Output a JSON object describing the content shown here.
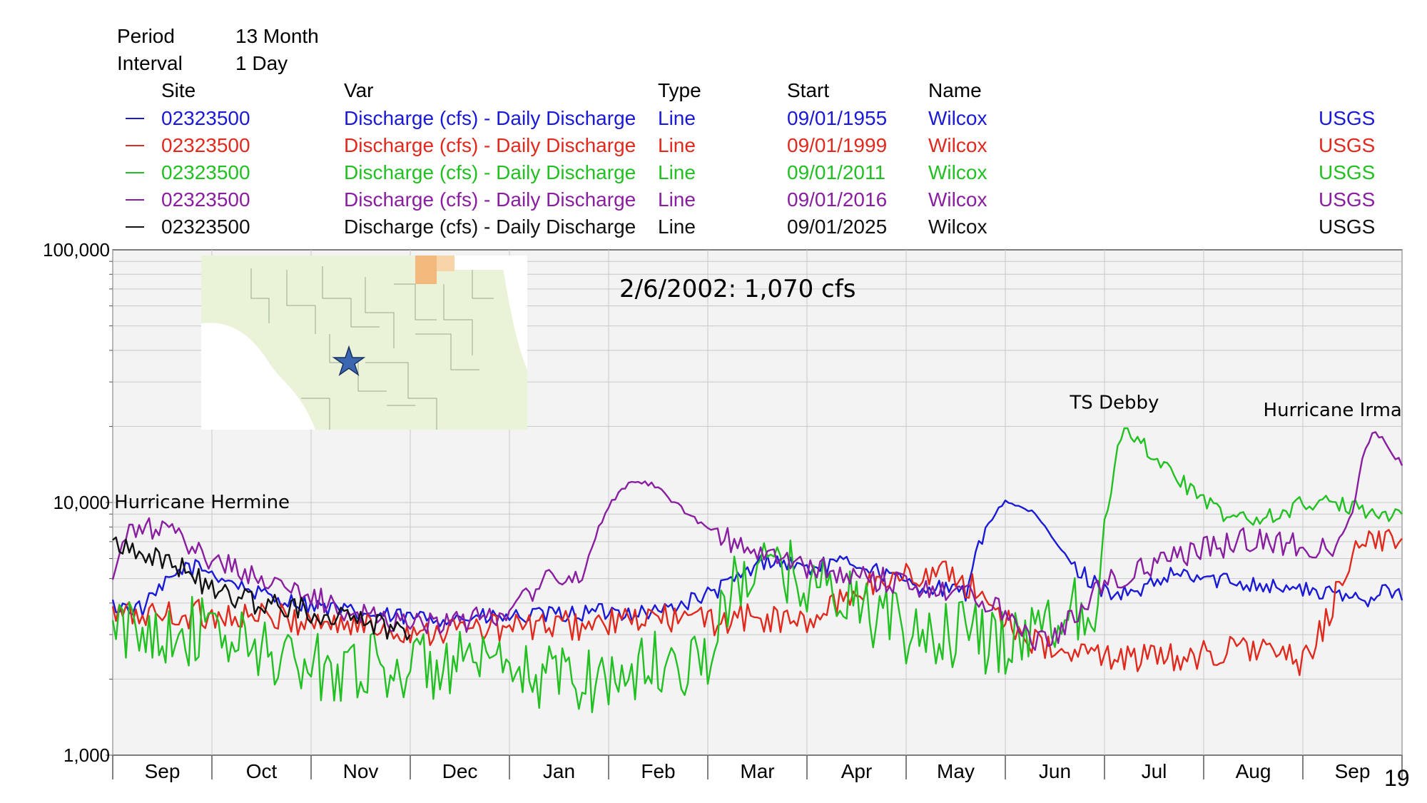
{
  "header": {
    "period_label": "Period",
    "period_value": "13 Month",
    "interval_label": "Interval",
    "interval_value": "1 Day"
  },
  "legend_headers": {
    "site": "Site",
    "var": "Var",
    "type": "Type",
    "start": "Start",
    "name": "Name"
  },
  "legend_rows": [
    {
      "site": "02323500",
      "var": "Discharge (cfs) - Daily Discharge",
      "type": "Line",
      "start": "09/01/1955",
      "name": "Wilcox",
      "agency": "USGS",
      "color": "#1a1ad6"
    },
    {
      "site": "02323500",
      "var": "Discharge (cfs) - Daily Discharge",
      "type": "Line",
      "start": "09/01/1999",
      "name": "Wilcox",
      "agency": "USGS",
      "color": "#e02a1e"
    },
    {
      "site": "02323500",
      "var": "Discharge (cfs) - Daily Discharge",
      "type": "Line",
      "start": "09/01/2011",
      "name": "Wilcox",
      "agency": "USGS",
      "color": "#22c022"
    },
    {
      "site": "02323500",
      "var": "Discharge (cfs) - Daily Discharge",
      "type": "Line",
      "start": "09/01/2016",
      "name": "Wilcox",
      "agency": "USGS",
      "color": "#8a1ea0"
    },
    {
      "site": "02323500",
      "var": "Discharge (cfs) - Daily Discharge",
      "type": "Line",
      "start": "09/01/2025",
      "name": "Wilcox",
      "agency": "USGS",
      "color": "#111111"
    }
  ],
  "slide_number": "19",
  "chart_data": {
    "type": "line",
    "title": "",
    "xlabel": "",
    "ylabel": "",
    "y_scale": "log",
    "ylim": [
      1000,
      100000
    ],
    "y_ticks": [
      1000,
      10000,
      100000
    ],
    "y_tick_labels": [
      "1,000",
      "10,000",
      "100,000"
    ],
    "categories": [
      "Sep",
      "Oct",
      "Nov",
      "Dec",
      "Jan",
      "Feb",
      "Mar",
      "Apr",
      "May",
      "Jun",
      "Jul",
      "Aug",
      "Sep"
    ],
    "x_range_months": [
      0,
      13
    ],
    "grid": true,
    "annotations": [
      {
        "text": "2/6/2002: 1,070 cfs",
        "x": 6.3,
        "y": 65000
      },
      {
        "text": "TS Debby",
        "x": 10.1,
        "y": 23500
      },
      {
        "text": "Hurricane Irma",
        "x": 12.3,
        "y": 22000
      },
      {
        "text": "Hurricane Hermine",
        "x": 0.9,
        "y": 9500
      }
    ],
    "series": [
      {
        "name": "09/01/1955",
        "color": "#1a1ad6",
        "x": [
          0,
          0.3,
          0.7,
          0.9,
          1.5,
          1.9,
          2.5,
          3.0,
          4.0,
          5.0,
          5.5,
          6.0,
          6.3,
          6.6,
          7.0,
          7.5,
          8.0,
          8.4,
          8.6,
          8.8,
          9.0,
          9.3,
          9.7,
          10.0,
          10.3,
          10.7,
          11.0,
          11.5,
          12.0,
          12.5,
          12.75,
          12.8,
          13.0
        ],
        "y": [
          3900,
          3800,
          5500,
          5500,
          4300,
          4000,
          3600,
          3500,
          3500,
          3700,
          3700,
          4300,
          5000,
          6000,
          5500,
          5800,
          4800,
          4500,
          4400,
          8000,
          10200,
          9000,
          5500,
          4500,
          4300,
          5200,
          5000,
          4800,
          4500,
          4200,
          4200,
          5000,
          4100
        ]
      },
      {
        "name": "09/01/1999",
        "color": "#e02a1e",
        "x": [
          0,
          1,
          2,
          3,
          4,
          5,
          5.5,
          6,
          6.5,
          7,
          7.5,
          8,
          8.5,
          9,
          9.3,
          9.5,
          10,
          10.5,
          11,
          11.5,
          12.0,
          12.1,
          12.3,
          12.5,
          13.0
        ],
        "y": [
          3600,
          3600,
          3400,
          3100,
          3200,
          3300,
          3500,
          3400,
          3500,
          3300,
          4500,
          5200,
          5200,
          3500,
          2800,
          2500,
          2500,
          2400,
          2500,
          2700,
          2300,
          2600,
          4000,
          6500,
          7200
        ]
      },
      {
        "name": "09/01/2011",
        "color": "#22c022",
        "x": [
          0,
          0.5,
          1,
          1.5,
          2,
          2.5,
          3,
          3.5,
          4,
          4.5,
          5,
          5.5,
          6,
          6.2,
          6.4,
          7,
          7.5,
          8,
          8.5,
          9,
          9.3,
          9.6,
          9.9,
          10.0,
          10.1,
          10.2,
          10.4,
          10.6,
          10.8,
          11.0,
          11.2,
          11.5,
          11.8,
          12.0,
          12.2,
          12.5,
          13.0
        ],
        "y": [
          3000,
          3200,
          3000,
          2600,
          2200,
          2300,
          2200,
          2300,
          2000,
          2100,
          2000,
          2300,
          2400,
          4000,
          5500,
          5000,
          4000,
          3000,
          3000,
          2800,
          3300,
          3600,
          4200,
          8000,
          14000,
          20000,
          17000,
          14000,
          12000,
          10000,
          9000,
          8500,
          9000,
          10000,
          10000,
          9500,
          9000
        ]
      },
      {
        "name": "09/01/2016",
        "color": "#8a1ea0",
        "x": [
          0,
          0.1,
          0.3,
          0.5,
          1.0,
          1.5,
          2.0,
          2.5,
          3.0,
          3.5,
          4.0,
          4.3,
          4.7,
          4.9,
          5.0,
          5.1,
          5.2,
          5.3,
          5.5,
          5.8,
          6.1,
          6.5,
          7.0,
          7.5,
          8.0,
          8.5,
          9.0,
          9.3,
          9.5,
          9.7,
          10.0,
          10.5,
          11.0,
          11.5,
          12.0,
          12.3,
          12.5,
          12.6,
          12.7,
          12.8,
          13.0
        ],
        "y": [
          4800,
          7000,
          8000,
          7800,
          6000,
          5000,
          4200,
          3600,
          3400,
          3300,
          3800,
          4800,
          5000,
          8000,
          9500,
          11000,
          12000,
          12300,
          11500,
          9000,
          7500,
          6300,
          5500,
          5100,
          4800,
          4500,
          3800,
          2900,
          3000,
          3600,
          4800,
          5700,
          6500,
          7200,
          6700,
          6300,
          9000,
          15000,
          19000,
          18000,
          14000
        ]
      },
      {
        "name": "09/01/2025",
        "color": "#111111",
        "x": [
          0,
          0.3,
          0.7,
          1.0,
          1.5,
          2.0,
          2.5,
          2.8,
          3.0
        ],
        "y": [
          7000,
          6500,
          5500,
          4500,
          4000,
          3700,
          3500,
          3200,
          3000
        ]
      }
    ]
  }
}
